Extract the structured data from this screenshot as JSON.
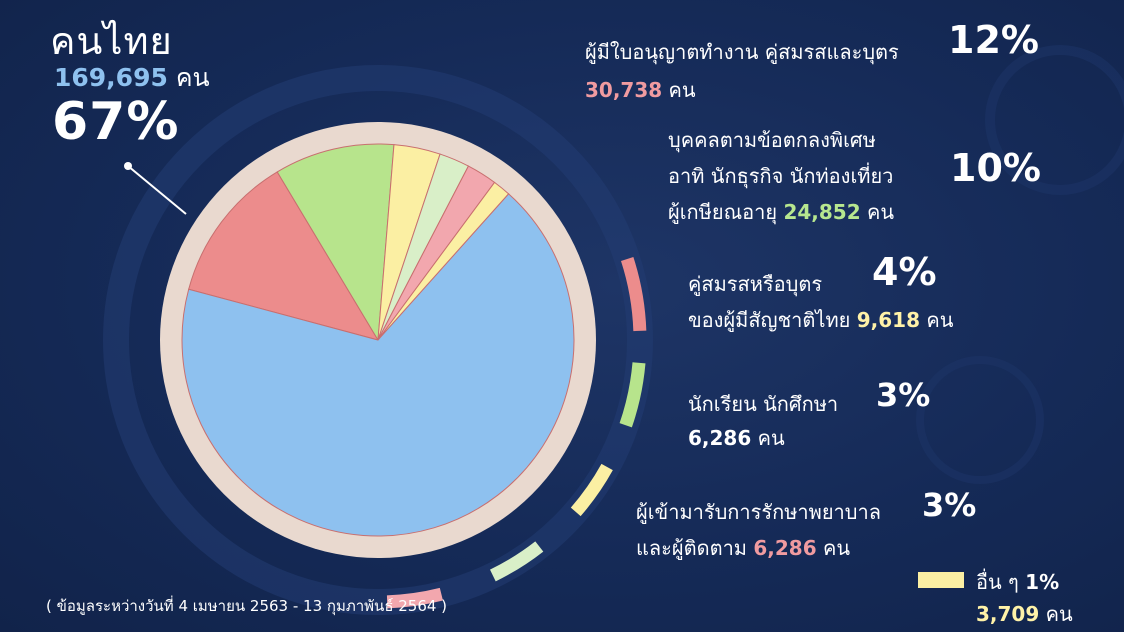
{
  "colors": {
    "background": "#152a57",
    "ring": "#e9d9cf",
    "thai": "#8ec1ef",
    "work_permit": "#ec8c8c",
    "special": "#b7e48c",
    "spouse": "#fbefa3",
    "students": "#d9efc8",
    "medical": "#f2a7ae",
    "others": "#fbefa3"
  },
  "main": {
    "title": "คนไทย",
    "count": "169,695",
    "unit": "คน",
    "percent": "67%"
  },
  "labels": {
    "work_permit": {
      "line1": "ผู้มีใบอนุญาตทำงาน  คู่สมรสและบุตร",
      "count": "30,738",
      "unit": "คน",
      "percent": "12%"
    },
    "special": {
      "line1": "บุคคลตามข้อตกลงพิเศษ",
      "line2": "อาทิ  นักธุรกิจ  นักท่องเที่ยว",
      "line3": "ผู้เกษียณอายุ",
      "count": "24,852",
      "unit": "คน",
      "percent": "10%"
    },
    "spouse": {
      "line1": "คู่สมรสหรือบุตร",
      "line2": "ของผู้มีสัญชาติไทย",
      "count": "9,618",
      "unit": "คน",
      "percent": "4%"
    },
    "students": {
      "line1": "นักเรียน  นักศึกษา",
      "count": "6,286",
      "unit": "คน",
      "percent": "3%"
    },
    "medical": {
      "line1": "ผู้เข้ามารับการรักษาพยาบาล",
      "line2": "และผู้ติดตาม",
      "count": "6,286",
      "unit": "คน",
      "percent": "3%"
    },
    "others": {
      "line1": "อื่น  ๆ",
      "count": "3,709",
      "unit": "คน",
      "percent": "1%"
    }
  },
  "footnote": "( ข้อมูลระหว่างวันที่ 4 เมษายน 2563  -  13 กุมภาพันธ์ 2564 )",
  "chart_data": {
    "type": "pie",
    "title": "",
    "unit": "คน",
    "slices": [
      {
        "label": "คนไทย",
        "value": 169695,
        "percent": 67,
        "color": "#8ec1ef"
      },
      {
        "label": "ผู้มีใบอนุญาตทำงาน คู่สมรสและบุตร",
        "value": 30738,
        "percent": 12,
        "color": "#ec8c8c"
      },
      {
        "label": "บุคคลตามข้อตกลงพิเศษ อาทิ นักธุรกิจ นักท่องเที่ยว ผู้เกษียณอายุ",
        "value": 24852,
        "percent": 10,
        "color": "#b7e48c"
      },
      {
        "label": "คู่สมรสหรือบุตร ของผู้มีสัญชาติไทย",
        "value": 9618,
        "percent": 4,
        "color": "#fbefa3"
      },
      {
        "label": "นักเรียน นักศึกษา",
        "value": 6286,
        "percent": 3,
        "color": "#d9efc8"
      },
      {
        "label": "ผู้เข้ามารับการรักษาพยาบาล และผู้ติดตาม",
        "value": 6286,
        "percent": 3,
        "color": "#f2a7ae"
      },
      {
        "label": "อื่น ๆ",
        "value": 3709,
        "percent": 1,
        "color": "#fbefa3"
      }
    ]
  }
}
